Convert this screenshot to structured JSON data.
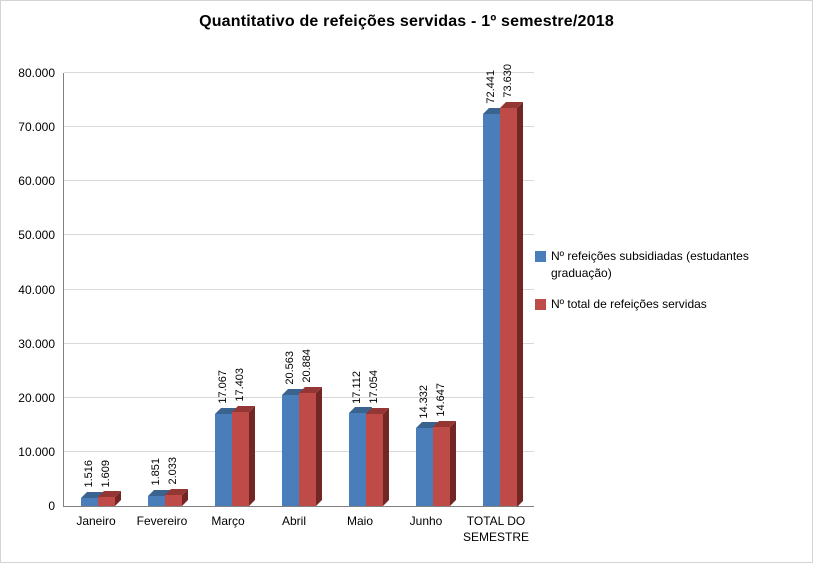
{
  "chart_data": {
    "type": "bar",
    "style": "3d-clustered-column",
    "title": "Quantitativo de refeições servidas - 1º semestre/2018",
    "xlabel": "",
    "ylabel": "",
    "categories": [
      "Janeiro",
      "Fevereiro",
      "Março",
      "Abril",
      "Maio",
      "Junho",
      "TOTAL DO SEMESTRE"
    ],
    "series": [
      {
        "name": "Nº refeições subsidiadas (estudantes graduação)",
        "color": "#4A7EBB",
        "side": "#28456B",
        "top": "#3A648F",
        "values": [
          1516,
          1851,
          17067,
          20563,
          17112,
          14332,
          72441
        ],
        "labels": [
          "1.516",
          "1.851",
          "17.067",
          "20.563",
          "17.112",
          "14.332",
          "72.441"
        ]
      },
      {
        "name": "Nº total de refeições servidas",
        "color": "#BE4B48",
        "side": "#732725",
        "top": "#943734",
        "values": [
          1609,
          2033,
          17403,
          20884,
          17054,
          14647,
          73630
        ],
        "labels": [
          "1.609",
          "2.033",
          "17.403",
          "20.884",
          "17.054",
          "14.647",
          "73.630"
        ]
      }
    ],
    "ylim": [
      0,
      80000
    ],
    "ytick_step": 10000,
    "ytick_labels": [
      "0",
      "10.000",
      "20.000",
      "30.000",
      "40.000",
      "50.000",
      "60.000",
      "70.000",
      "80.000"
    ],
    "grid": true,
    "gridline_color": "#d9d9d9",
    "legend_position": "right"
  }
}
